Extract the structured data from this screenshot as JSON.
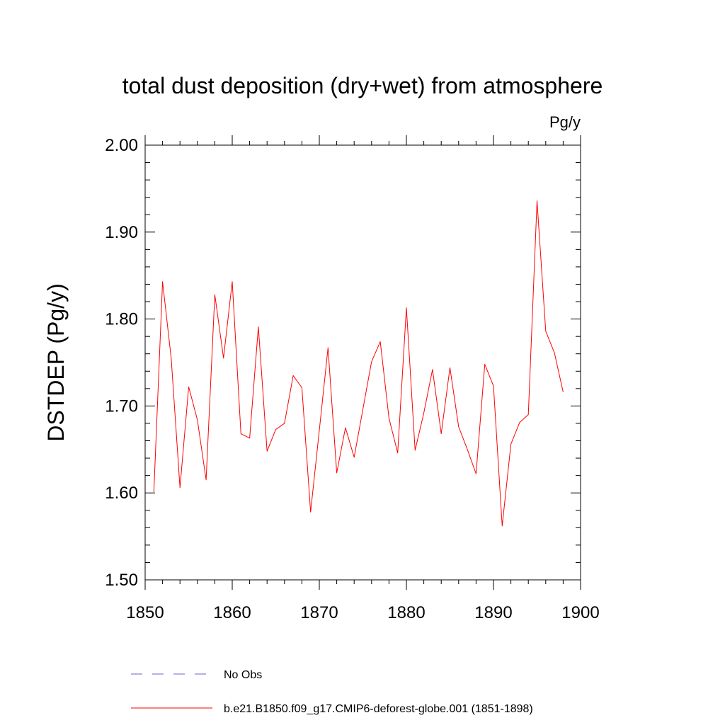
{
  "chart_data": {
    "type": "line",
    "title": "total dust deposition (dry+wet) from atmosphere",
    "units_label": "Pg/y",
    "xlabel": "",
    "ylabel": "DSTDEP  (Pg/y)",
    "xlim": [
      1850,
      1900
    ],
    "ylim": [
      1.5,
      2.0
    ],
    "x_ticks": [
      1850,
      1860,
      1870,
      1880,
      1890,
      1900
    ],
    "x_tick_labels": [
      "1850",
      "1860",
      "1870",
      "1880",
      "1890",
      "1900"
    ],
    "y_ticks": [
      1.5,
      1.6,
      1.7,
      1.8,
      1.9,
      2.0
    ],
    "y_tick_labels": [
      "1.50",
      "1.60",
      "1.70",
      "1.80",
      "1.90",
      "2.00"
    ],
    "grid": false,
    "legend_position": "bottom",
    "legend": [
      {
        "label": "No Obs",
        "color": "#6666cc",
        "style": "dashed"
      },
      {
        "label": "b.e21.B1850.f09_g17.CMIP6-deforest-globe.001 (1851-1898)",
        "color": "#ff0000",
        "style": "solid"
      }
    ],
    "series": [
      {
        "name": "b.e21.B1850.f09_g17.CMIP6-deforest-globe.001 (1851-1898)",
        "color": "#ff0000",
        "x": [
          1851,
          1852,
          1853,
          1854,
          1855,
          1856,
          1857,
          1858,
          1859,
          1860,
          1861,
          1862,
          1863,
          1864,
          1865,
          1866,
          1867,
          1868,
          1869,
          1870,
          1871,
          1872,
          1873,
          1874,
          1875,
          1876,
          1877,
          1878,
          1879,
          1880,
          1881,
          1882,
          1883,
          1884,
          1885,
          1886,
          1887,
          1888,
          1889,
          1890,
          1891,
          1892,
          1893,
          1894,
          1895,
          1896,
          1897,
          1898
        ],
        "values": [
          1.601,
          1.843,
          1.754,
          1.606,
          1.722,
          1.684,
          1.615,
          1.828,
          1.755,
          1.843,
          1.668,
          1.663,
          1.791,
          1.648,
          1.673,
          1.68,
          1.735,
          1.721,
          1.578,
          1.672,
          1.767,
          1.623,
          1.675,
          1.641,
          1.696,
          1.751,
          1.774,
          1.686,
          1.646,
          1.813,
          1.649,
          1.692,
          1.742,
          1.668,
          1.744,
          1.676,
          1.65,
          1.622,
          1.748,
          1.723,
          1.562,
          1.656,
          1.681,
          1.69,
          1.936,
          1.786,
          1.761,
          1.716
        ]
      }
    ]
  }
}
